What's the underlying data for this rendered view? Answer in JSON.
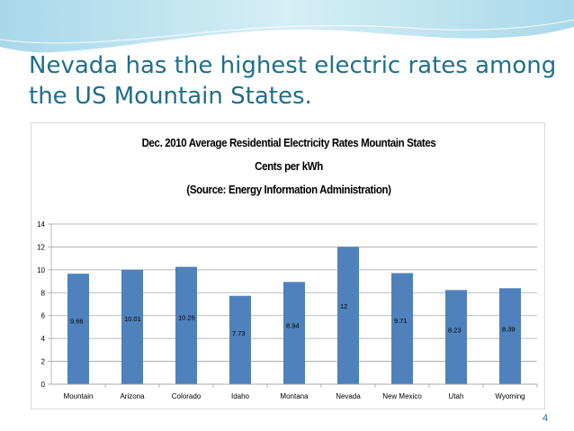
{
  "slide": {
    "title": "Nevada has the highest electric rates among the US Mountain States.",
    "page_number": "4",
    "colors": {
      "title": "#1f6f8b",
      "wave": "#bfe3ef",
      "bar": "#4f81bd"
    }
  },
  "chart_data": {
    "type": "bar",
    "title_lines": [
      "Dec. 2010 Average Residential Electricity Rates Mountain States",
      "Cents per kWh",
      "(Source: Energy Information Administration)"
    ],
    "categories": [
      "Mountain",
      "Arizona",
      "Colorado",
      "Idaho",
      "Montana",
      "Nevada",
      "New Mexico",
      "Utah",
      "Wyoming"
    ],
    "values": [
      9.66,
      10.01,
      10.26,
      7.73,
      8.94,
      12,
      9.71,
      8.23,
      8.39
    ],
    "data_labels": [
      "9.66",
      "10.01",
      "10.26",
      "7.73",
      "8.94",
      "12",
      "9.71",
      "8.23",
      "8.39"
    ],
    "ylim": [
      0,
      14
    ],
    "yticks": [
      "0",
      "2",
      "4",
      "6",
      "8",
      "10",
      "12",
      "14"
    ],
    "grid": true,
    "legend": "none",
    "xlabel": "",
    "ylabel": ""
  }
}
